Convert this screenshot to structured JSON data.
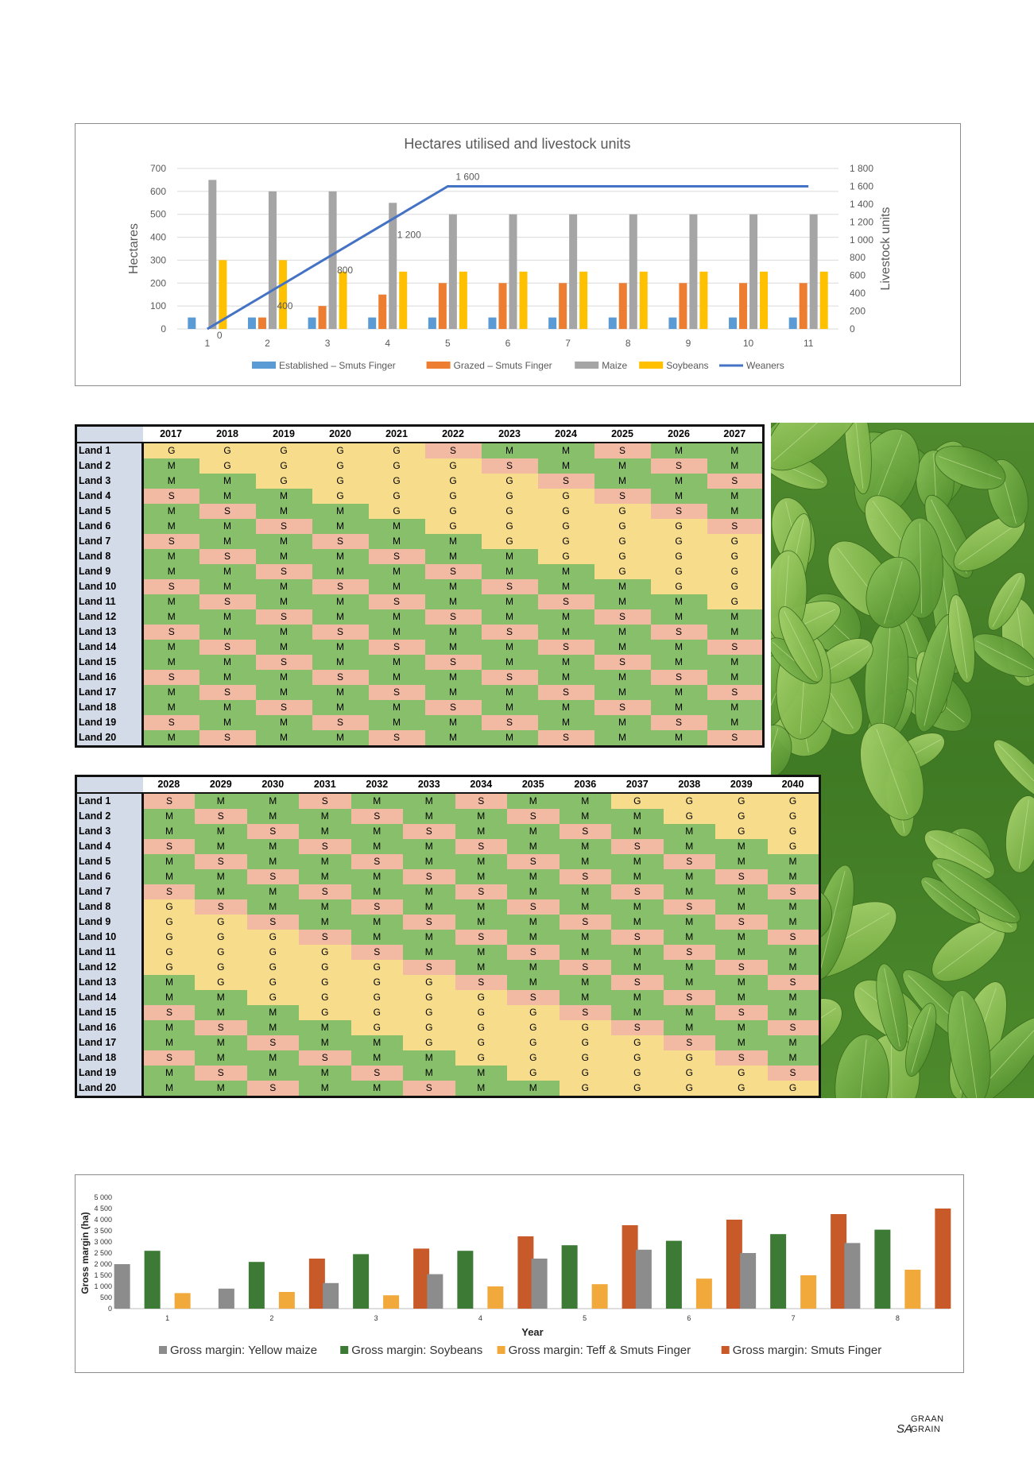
{
  "chart_data": [
    {
      "type": "bar+line",
      "title": "Hectares utilised and livestock units",
      "ylabel": "Hectares",
      "y2label": "Livestock units",
      "ylim": [
        0,
        700
      ],
      "y2lim": [
        0,
        1800
      ],
      "yticks": [
        "0",
        "100",
        "200",
        "300",
        "400",
        "500",
        "600",
        "700"
      ],
      "y2ticks": [
        "0",
        "200",
        "400",
        "600",
        "800",
        "1 000",
        "1 200",
        "1 400",
        "1 600",
        "1 800"
      ],
      "categories": [
        "1",
        "2",
        "3",
        "4",
        "5",
        "6",
        "7",
        "8",
        "9",
        "10",
        "11"
      ],
      "grid": true,
      "legend": "bottom",
      "series": [
        {
          "name": "Established – Smuts Finger",
          "type": "bar",
          "color": "#5b9bd5",
          "values": [
            50,
            50,
            50,
            50,
            50,
            50,
            50,
            50,
            50,
            50,
            50
          ]
        },
        {
          "name": "Grazed – Smuts Finger",
          "type": "bar",
          "color": "#ed7d31",
          "values": [
            0,
            50,
            100,
            150,
            200,
            200,
            200,
            200,
            200,
            200,
            200
          ]
        },
        {
          "name": "Maize",
          "type": "bar",
          "color": "#a5a5a5",
          "values": [
            650,
            600,
            600,
            550,
            500,
            500,
            500,
            500,
            500,
            500,
            500
          ]
        },
        {
          "name": "Soybeans",
          "type": "bar",
          "color": "#ffc000",
          "values": [
            300,
            300,
            250,
            250,
            250,
            250,
            250,
            250,
            250,
            250,
            250
          ]
        },
        {
          "name": "Weaners",
          "type": "line",
          "axis": "right",
          "color": "#4472c4",
          "values": [
            0,
            400,
            800,
            1200,
            1600,
            1600,
            1600,
            1600,
            1600,
            1600,
            1600
          ]
        }
      ],
      "data_labels": [
        {
          "index": 0,
          "text": "0"
        },
        {
          "index": 1,
          "text": "400"
        },
        {
          "index": 2,
          "text": "800"
        },
        {
          "index": 3,
          "text": "1 200"
        },
        {
          "index": 4,
          "text": "1 600"
        }
      ]
    },
    {
      "type": "bar",
      "xlabel": "Year",
      "ylabel": "Gross margin (ha)",
      "ylim": [
        0,
        5000
      ],
      "yticks": [
        "0",
        "500",
        "1 000",
        "1 500",
        "2 000",
        "2 500",
        "3 000",
        "3 500",
        "4 000",
        "4 500",
        "5 000"
      ],
      "categories": [
        "1",
        "2",
        "3",
        "4",
        "5",
        "6",
        "7",
        "8"
      ],
      "legend": "bottom",
      "series": [
        {
          "name": "Gross margin: Yellow maize",
          "color": "#8c8c8c",
          "values": [
            2000,
            900,
            1150,
            1550,
            2250,
            2650,
            2500,
            2950
          ]
        },
        {
          "name": "Gross margin: Soybeans",
          "color": "#3c7a35",
          "values": [
            2600,
            2100,
            2450,
            2600,
            2850,
            3050,
            3350,
            3550
          ]
        },
        {
          "name": "Gross margin: Teff & Smuts Finger",
          "color": "#f2a93b",
          "values": [
            700,
            750,
            600,
            1000,
            1100,
            1350,
            1500,
            1750
          ]
        },
        {
          "name": "Gross margin: Smuts Finger",
          "color": "#c75a28",
          "values": [
            null,
            2250,
            2700,
            3250,
            3750,
            4000,
            4250,
            4500
          ]
        }
      ]
    }
  ],
  "rotation_tables": [
    {
      "years": [
        "2017",
        "2018",
        "2019",
        "2020",
        "2021",
        "2022",
        "2023",
        "2024",
        "2025",
        "2026",
        "2027"
      ],
      "lands": [
        "Land 1",
        "Land 2",
        "Land 3",
        "Land 4",
        "Land 5",
        "Land 6",
        "Land 7",
        "Land 8",
        "Land 9",
        "Land 10",
        "Land 11",
        "Land 12",
        "Land 13",
        "Land 14",
        "Land 15",
        "Land 16",
        "Land 17",
        "Land 18",
        "Land 19",
        "Land 20"
      ],
      "rows": [
        [
          "G",
          "G",
          "G",
          "G",
          "G",
          "S",
          "M",
          "M",
          "S",
          "M",
          "M"
        ],
        [
          "M",
          "G",
          "G",
          "G",
          "G",
          "G",
          "S",
          "M",
          "M",
          "S",
          "M"
        ],
        [
          "M",
          "M",
          "G",
          "G",
          "G",
          "G",
          "G",
          "S",
          "M",
          "M",
          "S"
        ],
        [
          "S",
          "M",
          "M",
          "G",
          "G",
          "G",
          "G",
          "G",
          "S",
          "M",
          "M"
        ],
        [
          "M",
          "S",
          "M",
          "M",
          "G",
          "G",
          "G",
          "G",
          "G",
          "S",
          "M"
        ],
        [
          "M",
          "M",
          "S",
          "M",
          "M",
          "G",
          "G",
          "G",
          "G",
          "G",
          "S"
        ],
        [
          "S",
          "M",
          "M",
          "S",
          "M",
          "M",
          "G",
          "G",
          "G",
          "G",
          "G"
        ],
        [
          "M",
          "S",
          "M",
          "M",
          "S",
          "M",
          "M",
          "G",
          "G",
          "G",
          "G"
        ],
        [
          "M",
          "M",
          "S",
          "M",
          "M",
          "S",
          "M",
          "M",
          "G",
          "G",
          "G"
        ],
        [
          "S",
          "M",
          "M",
          "S",
          "M",
          "M",
          "S",
          "M",
          "M",
          "G",
          "G"
        ],
        [
          "M",
          "S",
          "M",
          "M",
          "S",
          "M",
          "M",
          "S",
          "M",
          "M",
          "G"
        ],
        [
          "M",
          "M",
          "S",
          "M",
          "M",
          "S",
          "M",
          "M",
          "S",
          "M",
          "M"
        ],
        [
          "S",
          "M",
          "M",
          "S",
          "M",
          "M",
          "S",
          "M",
          "M",
          "S",
          "M"
        ],
        [
          "M",
          "S",
          "M",
          "M",
          "S",
          "M",
          "M",
          "S",
          "M",
          "M",
          "S"
        ],
        [
          "M",
          "M",
          "S",
          "M",
          "M",
          "S",
          "M",
          "M",
          "S",
          "M",
          "M"
        ],
        [
          "S",
          "M",
          "M",
          "S",
          "M",
          "M",
          "S",
          "M",
          "M",
          "S",
          "M"
        ],
        [
          "M",
          "S",
          "M",
          "M",
          "S",
          "M",
          "M",
          "S",
          "M",
          "M",
          "S"
        ],
        [
          "M",
          "M",
          "S",
          "M",
          "M",
          "S",
          "M",
          "M",
          "S",
          "M",
          "M"
        ],
        [
          "S",
          "M",
          "M",
          "S",
          "M",
          "M",
          "S",
          "M",
          "M",
          "S",
          "M"
        ],
        [
          "M",
          "S",
          "M",
          "M",
          "S",
          "M",
          "M",
          "S",
          "M",
          "M",
          "S"
        ]
      ]
    },
    {
      "years": [
        "2028",
        "2029",
        "2030",
        "2031",
        "2032",
        "2033",
        "2034",
        "2035",
        "2036",
        "2037",
        "2038",
        "2039",
        "2040"
      ],
      "lands": [
        "Land 1",
        "Land 2",
        "Land 3",
        "Land 4",
        "Land 5",
        "Land 6",
        "Land 7",
        "Land 8",
        "Land 9",
        "Land 10",
        "Land 11",
        "Land 12",
        "Land 13",
        "Land 14",
        "Land 15",
        "Land 16",
        "Land 17",
        "Land 18",
        "Land 19",
        "Land 20"
      ],
      "rows": [
        [
          "S",
          "M",
          "M",
          "S",
          "M",
          "M",
          "S",
          "M",
          "M",
          "G",
          "G",
          "G",
          "G"
        ],
        [
          "M",
          "S",
          "M",
          "M",
          "S",
          "M",
          "M",
          "S",
          "M",
          "M",
          "G",
          "G",
          "G"
        ],
        [
          "M",
          "M",
          "S",
          "M",
          "M",
          "S",
          "M",
          "M",
          "S",
          "M",
          "M",
          "G",
          "G"
        ],
        [
          "S",
          "M",
          "M",
          "S",
          "M",
          "M",
          "S",
          "M",
          "M",
          "S",
          "M",
          "M",
          "G"
        ],
        [
          "M",
          "S",
          "M",
          "M",
          "S",
          "M",
          "M",
          "S",
          "M",
          "M",
          "S",
          "M",
          "M"
        ],
        [
          "M",
          "M",
          "S",
          "M",
          "M",
          "S",
          "M",
          "M",
          "S",
          "M",
          "M",
          "S",
          "M"
        ],
        [
          "S",
          "M",
          "M",
          "S",
          "M",
          "M",
          "S",
          "M",
          "M",
          "S",
          "M",
          "M",
          "S"
        ],
        [
          "G",
          "S",
          "M",
          "M",
          "S",
          "M",
          "M",
          "S",
          "M",
          "M",
          "S",
          "M",
          "M"
        ],
        [
          "G",
          "G",
          "S",
          "M",
          "M",
          "S",
          "M",
          "M",
          "S",
          "M",
          "M",
          "S",
          "M"
        ],
        [
          "G",
          "G",
          "G",
          "S",
          "M",
          "M",
          "S",
          "M",
          "M",
          "S",
          "M",
          "M",
          "S"
        ],
        [
          "G",
          "G",
          "G",
          "G",
          "S",
          "M",
          "M",
          "S",
          "M",
          "M",
          "S",
          "M",
          "M"
        ],
        [
          "G",
          "G",
          "G",
          "G",
          "G",
          "S",
          "M",
          "M",
          "S",
          "M",
          "M",
          "S",
          "M"
        ],
        [
          "M",
          "G",
          "G",
          "G",
          "G",
          "G",
          "S",
          "M",
          "M",
          "S",
          "M",
          "M",
          "S"
        ],
        [
          "M",
          "M",
          "G",
          "G",
          "G",
          "G",
          "G",
          "S",
          "M",
          "M",
          "S",
          "M",
          "M"
        ],
        [
          "S",
          "M",
          "M",
          "G",
          "G",
          "G",
          "G",
          "G",
          "S",
          "M",
          "M",
          "S",
          "M"
        ],
        [
          "M",
          "S",
          "M",
          "M",
          "G",
          "G",
          "G",
          "G",
          "G",
          "S",
          "M",
          "M",
          "S"
        ],
        [
          "M",
          "M",
          "S",
          "M",
          "M",
          "G",
          "G",
          "G",
          "G",
          "G",
          "S",
          "M",
          "M"
        ],
        [
          "S",
          "M",
          "M",
          "S",
          "M",
          "M",
          "G",
          "G",
          "G",
          "G",
          "G",
          "S",
          "M"
        ],
        [
          "M",
          "S",
          "M",
          "M",
          "S",
          "M",
          "M",
          "G",
          "G",
          "G",
          "G",
          "G",
          "S"
        ],
        [
          "M",
          "M",
          "S",
          "M",
          "M",
          "S",
          "M",
          "M",
          "G",
          "G",
          "G",
          "G",
          "G"
        ]
      ]
    }
  ],
  "colors": {
    "G": "#f7dc8c",
    "M": "#87bf6b",
    "S": "#f2b9a3"
  },
  "photo": {
    "subject": "green legume leaves"
  },
  "logo": {
    "line1": "GRAAN",
    "line2": "SA",
    "line3": "GRAIN"
  }
}
